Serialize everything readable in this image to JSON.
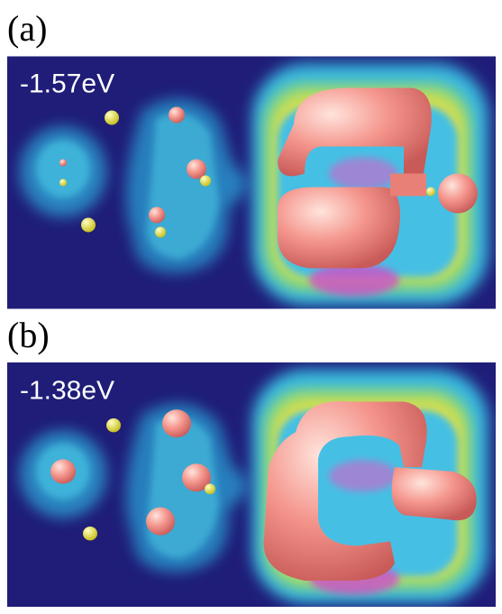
{
  "panels": [
    {
      "label": "(a)",
      "energy": "-1.57eV"
    },
    {
      "label": "(b)",
      "energy": "-1.38eV"
    }
  ]
}
